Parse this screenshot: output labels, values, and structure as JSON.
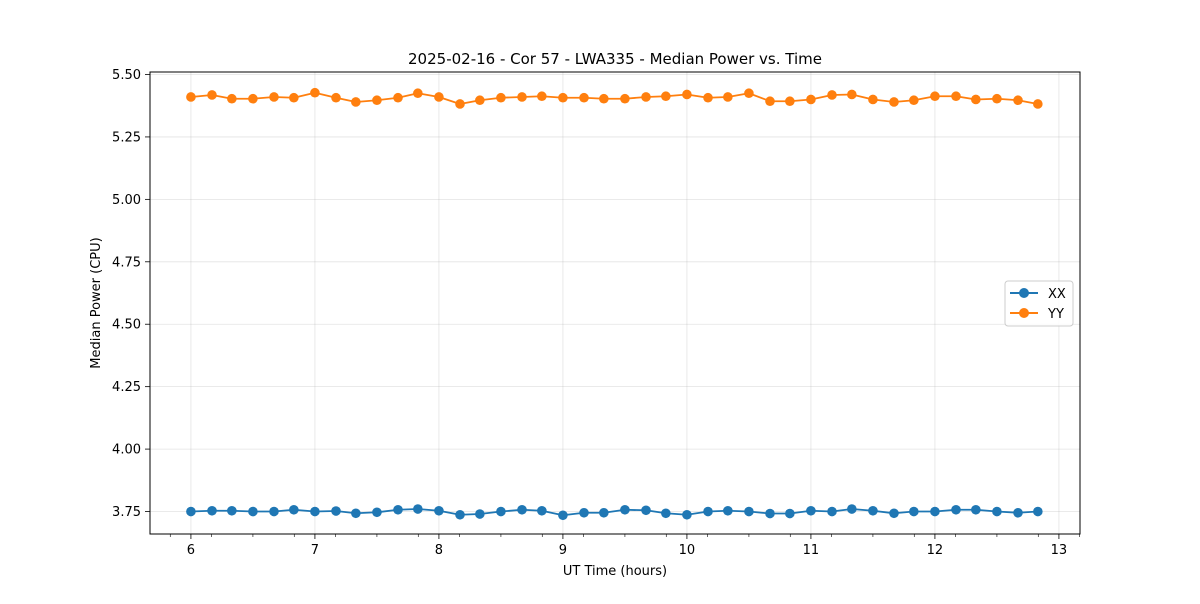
{
  "chart_data": {
    "type": "line",
    "title": "2025-02-16 - Cor 57 - LWA335 - Median Power vs. Time",
    "xlabel": "UT Time (hours)",
    "ylabel": "Median Power (CPU)",
    "xlim": [
      5.67,
      13.17
    ],
    "ylim": [
      3.66,
      5.51
    ],
    "grid": true,
    "legend_position": "center-right",
    "x_ticks": [
      6,
      7,
      8,
      9,
      10,
      11,
      12,
      13
    ],
    "x_tick_labels": [
      "6",
      "7",
      "8",
      "9",
      "10",
      "11",
      "12",
      "13"
    ],
    "y_ticks": [
      3.75,
      4.0,
      4.25,
      4.5,
      4.75,
      5.0,
      5.25,
      5.5
    ],
    "y_tick_labels": [
      "3.75",
      "4.00",
      "4.25",
      "4.50",
      "4.75",
      "5.00",
      "5.25",
      "5.50"
    ],
    "x": [
      6.0,
      6.17,
      6.33,
      6.5,
      6.67,
      6.83,
      7.0,
      7.17,
      7.33,
      7.5,
      7.67,
      7.83,
      8.0,
      8.17,
      8.33,
      8.5,
      8.67,
      8.83,
      9.0,
      9.17,
      9.33,
      9.5,
      9.67,
      9.83,
      10.0,
      10.17,
      10.33,
      10.5,
      10.67,
      10.83,
      11.0,
      11.17,
      11.33,
      11.5,
      11.67,
      11.83,
      12.0,
      12.17,
      12.33,
      12.5,
      12.67,
      12.83
    ],
    "series": [
      {
        "name": "XX",
        "color": "#1f77b4",
        "values": [
          3.75,
          3.753,
          3.753,
          3.75,
          3.75,
          3.757,
          3.75,
          3.752,
          3.743,
          3.747,
          3.757,
          3.76,
          3.753,
          3.737,
          3.74,
          3.75,
          3.757,
          3.753,
          3.735,
          3.745,
          3.745,
          3.757,
          3.755,
          3.743,
          3.737,
          3.75,
          3.753,
          3.75,
          3.742,
          3.742,
          3.753,
          3.75,
          3.76,
          3.753,
          3.743,
          3.75,
          3.75,
          3.757,
          3.757,
          3.75,
          3.745,
          3.75
        ]
      },
      {
        "name": "YY",
        "color": "#ff7f0e",
        "values": [
          5.41,
          5.418,
          5.403,
          5.403,
          5.41,
          5.407,
          5.427,
          5.407,
          5.39,
          5.397,
          5.407,
          5.425,
          5.41,
          5.382,
          5.397,
          5.407,
          5.41,
          5.413,
          5.407,
          5.407,
          5.403,
          5.403,
          5.41,
          5.413,
          5.42,
          5.407,
          5.41,
          5.425,
          5.393,
          5.393,
          5.4,
          5.418,
          5.42,
          5.4,
          5.39,
          5.397,
          5.413,
          5.413,
          5.4,
          5.403,
          5.397,
          5.382
        ]
      }
    ]
  }
}
